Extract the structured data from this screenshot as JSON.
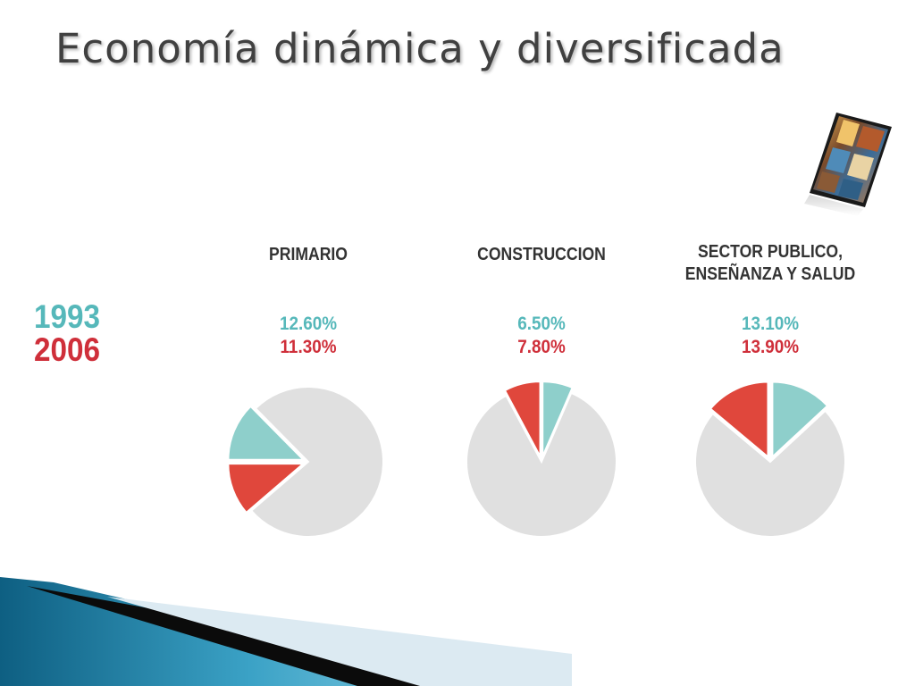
{
  "title": "Economía dinámica y diversificada",
  "legend": {
    "year_a": "1993",
    "year_b": "2006"
  },
  "colors": {
    "year_a": "#56b8ba",
    "year_b": "#cf2f3a",
    "slice_a": "#8ecfcb",
    "slice_b": "#e0473c",
    "rest": "#e0e0e0"
  },
  "chart_data": [
    {
      "type": "pie",
      "title": "PRIMARIO",
      "series": [
        {
          "name": "1993",
          "value": 12.6,
          "label": "12.60%"
        },
        {
          "name": "2006",
          "value": 11.3,
          "label": "11.30%"
        }
      ]
    },
    {
      "type": "pie",
      "title": "CONSTRUCCION",
      "series": [
        {
          "name": "1993",
          "value": 6.5,
          "label": "6.50%"
        },
        {
          "name": "2006",
          "value": 7.8,
          "label": "7.80%"
        }
      ]
    },
    {
      "type": "pie",
      "title": "SECTOR PUBLICO,\nENSEÑANZA Y SALUD",
      "title_lines": [
        "SECTOR PUBLICO,",
        "ENSEÑANZA Y SALUD"
      ],
      "series": [
        {
          "name": "1993",
          "value": 13.1,
          "label": "13.10%"
        },
        {
          "name": "2006",
          "value": 13.9,
          "label": "13.90%"
        }
      ]
    }
  ]
}
